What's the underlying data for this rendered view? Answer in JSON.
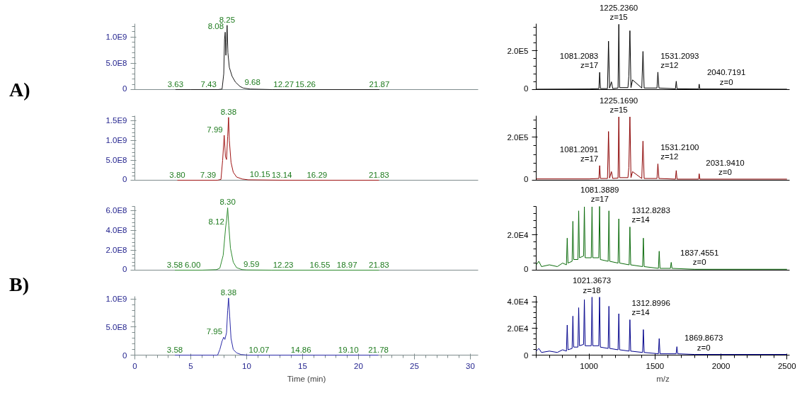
{
  "chart_data": [
    {
      "type": "line",
      "color": "#1a1a1a",
      "x": [
        3.63,
        5,
        7.43,
        7.8,
        7.95,
        8.02,
        8.08,
        8.14,
        8.2,
        8.25,
        8.32,
        8.45,
        8.7,
        9.0,
        9.4,
        9.68,
        10.3,
        12.27,
        15.26,
        21.87
      ],
      "values": [
        0,
        0,
        0,
        10000000,
        300000000,
        950000000,
        1090000000,
        650000000,
        900000000,
        1220000000,
        700000000,
        420000000,
        250000000,
        140000000,
        60000000,
        30000000,
        10000000,
        0,
        0,
        0
      ],
      "xlim": [
        0,
        30.7
      ],
      "ylim": [
        0,
        1250000000
      ],
      "yticks": [
        0,
        {
          "value": 500000000,
          "label": "5.0E8"
        },
        {
          "value": 1000000000,
          "label": "1.0E9"
        }
      ],
      "tick_labels": "y",
      "annotations": [
        "A)",
        {
          "text": "3.63",
          "x": 3.63,
          "y": 0
        },
        {
          "text": "7.43",
          "x": 7.43,
          "y": 0
        },
        {
          "text": "8.08",
          "x": 8.08,
          "y": 1090000000
        },
        {
          "text": "8.25",
          "x": 8.25,
          "y": 1220000000
        },
        {
          "text": "9.68",
          "x": 9.68,
          "y": 30000000
        },
        {
          "text": "12.27",
          "x": 12.27,
          "y": 0
        },
        {
          "text": "15.26",
          "x": 15.26,
          "y": 0
        },
        {
          "text": "21.87",
          "x": 21.87,
          "y": 0
        }
      ]
    },
    {
      "type": "line",
      "color": "#000000",
      "x": [
        600,
        1000,
        1075,
        1081,
        1087,
        1140,
        1148,
        1156,
        1170,
        1180,
        1220,
        1226,
        1232,
        1295,
        1302,
        1310,
        1318,
        1330,
        1400,
        1409,
        1418,
        1515,
        1522,
        1530,
        1655,
        1661,
        1667,
        1830,
        1835,
        1840,
        2500
      ],
      "values": [
        2000,
        3000,
        5000,
        89000,
        5000,
        5000,
        250000,
        8000,
        40000,
        5000,
        8000,
        337000,
        10000,
        10000,
        70000,
        304000,
        10000,
        50000,
        8000,
        197000,
        8000,
        8000,
        90000,
        8000,
        4000,
        43000,
        4000,
        3000,
        28000,
        3000,
        2000
      ],
      "xlim": [
        600,
        2520
      ],
      "ylim": [
        0,
        340000
      ],
      "yticks": [
        0,
        {
          "value": 200000,
          "label": "2.0E5"
        }
      ],
      "tick_labels": "y",
      "annotations": [
        {
          "text": "1081.2083\nz=17",
          "x": 1081.2083,
          "y": 89000
        },
        {
          "text": "1225.2360\nz=15",
          "x": 1225.236,
          "y": 337000
        },
        {
          "text": "1531.2093\nz=12",
          "x": 1531.2093,
          "y": 90000
        },
        {
          "text": "2040.7191\nz=0",
          "x": 2040.7191,
          "y": 3000
        }
      ]
    },
    {
      "type": "line",
      "color": "#a01414",
      "x": [
        3.8,
        7.39,
        7.7,
        7.85,
        7.99,
        8.1,
        8.2,
        8.3,
        8.38,
        8.45,
        8.6,
        8.8,
        9.1,
        9.6,
        10.15,
        13.14,
        16.29,
        21.83
      ],
      "values": [
        0,
        0,
        20000000,
        500000000,
        1130000000,
        600000000,
        520000000,
        1100000000,
        1580000000,
        1000000000,
        450000000,
        200000000,
        80000000,
        30000000,
        10000000,
        0,
        0,
        0
      ],
      "xlim": [
        0,
        30.7
      ],
      "ylim": [
        0,
        1620000000
      ],
      "yticks": [
        0,
        {
          "value": 500000000,
          "label": "5.0E8"
        },
        {
          "value": 1000000000,
          "label": "1.0E9"
        },
        {
          "value": 1500000000,
          "label": "1.5E9"
        }
      ],
      "tick_labels": "y",
      "annotations": [
        {
          "text": "3.80",
          "x": 3.8,
          "y": 0
        },
        {
          "text": "7.39",
          "x": 7.39,
          "y": 0
        },
        {
          "text": "7.99",
          "x": 7.99,
          "y": 1130000000
        },
        {
          "text": "8.38",
          "x": 8.38,
          "y": 1580000000
        },
        {
          "text": "10.15",
          "x": 10.15,
          "y": 10000000
        },
        {
          "text": "13.14",
          "x": 13.14,
          "y": 0
        },
        {
          "text": "16.29",
          "x": 16.29,
          "y": 0
        },
        {
          "text": "21.83",
          "x": 21.83,
          "y": 0
        }
      ]
    },
    {
      "type": "line",
      "color": "#8b0000",
      "x": [
        600,
        1000,
        1075,
        1081,
        1087,
        1140,
        1148,
        1156,
        1170,
        1180,
        1220,
        1226,
        1232,
        1295,
        1302,
        1310,
        1318,
        1330,
        1400,
        1409,
        1418,
        1515,
        1522,
        1530,
        1655,
        1661,
        1667,
        1830,
        1835,
        1840,
        2500
      ],
      "values": [
        6000,
        6000,
        8000,
        68000,
        8000,
        8000,
        227000,
        10000,
        40000,
        8000,
        10000,
        295000,
        12000,
        12000,
        60000,
        295000,
        12000,
        40000,
        8000,
        182000,
        8000,
        8000,
        76000,
        8000,
        5000,
        45000,
        5000,
        5000,
        30000,
        5000,
        5000
      ],
      "xlim": [
        600,
        2520
      ],
      "ylim": [
        0,
        300000
      ],
      "yticks": [
        0,
        {
          "value": 200000,
          "label": "2.0E5"
        }
      ],
      "tick_labels": "y",
      "annotations": [
        {
          "text": "1081.2091\nz=17",
          "x": 1081.2091,
          "y": 68000
        },
        {
          "text": "1225.1690\nz=15",
          "x": 1225.169,
          "y": 295000
        },
        {
          "text": "1531.2100\nz=12",
          "x": 1531.21,
          "y": 76000
        },
        {
          "text": "2031.9410\nz=0",
          "x": 2031.941,
          "y": 5000
        }
      ]
    },
    {
      "type": "line",
      "color": "#2e8b2e",
      "x": [
        3.58,
        6.0,
        7.3,
        7.6,
        7.9,
        8.12,
        8.2,
        8.3,
        8.4,
        8.55,
        8.8,
        9.1,
        9.59,
        10.0,
        12.23,
        16.55,
        18.97,
        21.83
      ],
      "values": [
        0,
        0,
        5000000,
        20000000,
        150000000,
        430000000,
        500000000,
        626000000,
        450000000,
        220000000,
        80000000,
        25000000,
        5000000,
        2000000,
        0,
        0,
        0,
        0
      ],
      "xlim": [
        0,
        30.7
      ],
      "ylim": [
        0,
        640000000
      ],
      "yticks": [
        0,
        {
          "value": 200000000,
          "label": "2.0E8"
        },
        {
          "value": 400000000,
          "label": "4.0E8"
        },
        {
          "value": 600000000,
          "label": "6.0E8"
        }
      ],
      "tick_labels": "y",
      "annotations": [
        "B)",
        {
          "text": "3.58",
          "x": 3.58,
          "y": 0
        },
        {
          "text": "6.00",
          "x": 6.0,
          "y": 0
        },
        {
          "text": "8.12",
          "x": 8.12,
          "y": 430000000
        },
        {
          "text": "8.30",
          "x": 8.3,
          "y": 626000000
        },
        {
          "text": "9.59",
          "x": 9.59,
          "y": 5000000
        },
        {
          "text": "12.23",
          "x": 12.23,
          "y": 0
        },
        {
          "text": "16.55",
          "x": 16.55,
          "y": 0
        },
        {
          "text": "18.97",
          "x": 18.97,
          "y": 0
        },
        {
          "text": "21.83",
          "x": 21.83,
          "y": 0
        }
      ]
    },
    {
      "type": "line",
      "color": "#0b6b0b",
      "x": [
        600,
        620,
        640,
        700,
        760,
        800,
        829,
        835,
        841,
        872,
        878,
        884,
        916,
        922,
        928,
        959,
        965,
        971,
        1017,
        1023,
        1029,
        1074,
        1080,
        1086,
        1145,
        1151,
        1157,
        1220,
        1226,
        1232,
        1304,
        1310,
        1316,
        1406,
        1412,
        1418,
        1526,
        1532,
        1538,
        1617,
        1623,
        1629,
        1800,
        2500
      ],
      "values": [
        3000,
        5000,
        2000,
        3000,
        2000,
        4000,
        3000,
        18100,
        4000,
        5000,
        27600,
        6000,
        6000,
        33500,
        7000,
        8000,
        35800,
        7000,
        7000,
        35800,
        7000,
        7000,
        36000,
        6000,
        5000,
        33500,
        5000,
        4000,
        29000,
        4000,
        3000,
        24400,
        3000,
        2000,
        18100,
        2000,
        1000,
        10700,
        1000,
        1000,
        4400,
        1000,
        500,
        500
      ],
      "xlim": [
        600,
        2520
      ],
      "ylim": [
        0,
        36000
      ],
      "yticks": [
        0,
        {
          "value": 20000,
          "label": "2.0E4"
        }
      ],
      "tick_labels": "y",
      "annotations": [
        {
          "text": "1081.3889\nz=17",
          "x": 1081.3889,
          "y": 36000
        },
        {
          "text": "1312.8283\nz=14",
          "x": 1312.8283,
          "y": 24400
        },
        {
          "text": "1837.4551\nz=0",
          "x": 1837.4551,
          "y": 500
        }
      ]
    },
    {
      "type": "line",
      "color": "#2a2aa8",
      "x": [
        3.58,
        7.4,
        7.6,
        7.8,
        7.95,
        8.05,
        8.2,
        8.3,
        8.38,
        8.48,
        8.6,
        8.8,
        9.1,
        9.5,
        10.07,
        14.86,
        19.1,
        21.78
      ],
      "values": [
        0,
        0,
        100000000,
        250000000,
        320000000,
        280000000,
        400000000,
        800000000,
        1020000000,
        700000000,
        300000000,
        100000000,
        40000000,
        10000000,
        0,
        0,
        0,
        0
      ],
      "xlim": [
        0,
        30.7
      ],
      "ylim": [
        0,
        1050000000
      ],
      "xticks": [
        0,
        5,
        10,
        15,
        20,
        25,
        30
      ],
      "yticks": [
        0,
        {
          "value": 500000000,
          "label": "5.0E8"
        },
        {
          "value": 1000000000,
          "label": "1.0E9"
        }
      ],
      "xlabel": "Time (min)",
      "annotations": [
        {
          "text": "3.58",
          "x": 3.58,
          "y": 0
        },
        {
          "text": "7.95",
          "x": 7.95,
          "y": 320000000
        },
        {
          "text": "8.38",
          "x": 8.38,
          "y": 1020000000
        },
        {
          "text": "10.07",
          "x": 10.07,
          "y": 0
        },
        {
          "text": "14.86",
          "x": 14.86,
          "y": 0
        },
        {
          "text": "19.10",
          "x": 19.1,
          "y": 0
        },
        {
          "text": "21.78",
          "x": 21.78,
          "y": 0
        }
      ]
    },
    {
      "type": "line",
      "color": "#00008b",
      "x": [
        600,
        620,
        640,
        700,
        760,
        800,
        829,
        835,
        841,
        872,
        878,
        884,
        916,
        922,
        928,
        959,
        965,
        971,
        1017,
        1023,
        1029,
        1074,
        1080,
        1086,
        1145,
        1151,
        1157,
        1220,
        1226,
        1232,
        1304,
        1310,
        1316,
        1406,
        1412,
        1418,
        1526,
        1532,
        1538,
        1660,
        1666,
        1672,
        1800,
        2500
      ],
      "values": [
        3000,
        5000,
        2000,
        3000,
        2000,
        4000,
        3000,
        22500,
        4000,
        5000,
        29200,
        6000,
        6000,
        35500,
        7000,
        8000,
        41600,
        7000,
        7000,
        43400,
        7000,
        7000,
        43400,
        6000,
        5000,
        36600,
        5000,
        4000,
        31000,
        4000,
        3000,
        26500,
        3000,
        2000,
        19100,
        2000,
        1000,
        12400,
        1000,
        1000,
        6300,
        1000,
        500,
        500
      ],
      "xlim": [
        600,
        2520
      ],
      "ylim": [
        0,
        44000
      ],
      "xticks": [
        1000,
        1500,
        2000,
        2500
      ],
      "yticks": [
        0,
        {
          "value": 20000,
          "label": "2.0E4"
        },
        {
          "value": 40000,
          "label": "4.0E4"
        }
      ],
      "xlabel": "m/z",
      "annotations": [
        {
          "text": "1021.3673\nz=18",
          "x": 1021.3673,
          "y": 43400
        },
        {
          "text": "1312.8996\nz=14",
          "x": 1312.8996,
          "y": 26500
        },
        {
          "text": "1869.8673\nz=0",
          "x": 1869.8673,
          "y": 500
        }
      ]
    }
  ]
}
